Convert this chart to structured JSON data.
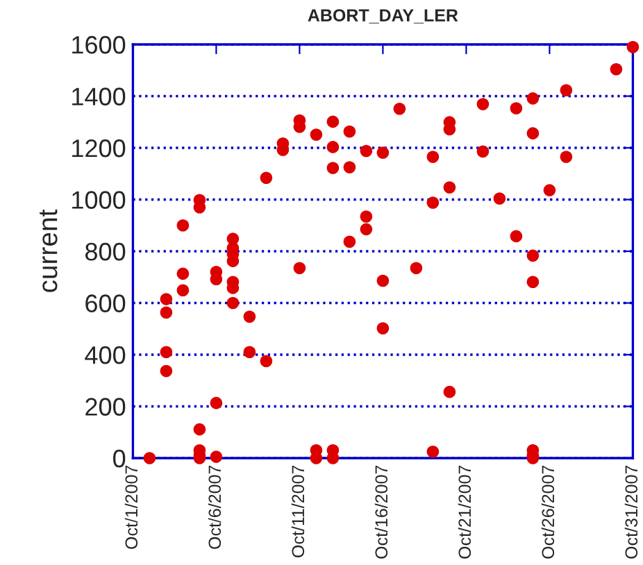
{
  "chart_data": {
    "type": "scatter",
    "title": "ABORT_DAY_LER",
    "ylabel": "current",
    "x": [
      "2007-10-02",
      "2007-10-03",
      "2007-10-03",
      "2007-10-03",
      "2007-10-03",
      "2007-10-04",
      "2007-10-04",
      "2007-10-04",
      "2007-10-05",
      "2007-10-05",
      "2007-10-05",
      "2007-10-05",
      "2007-10-05",
      "2007-10-05",
      "2007-10-06",
      "2007-10-06",
      "2007-10-06",
      "2007-10-06",
      "2007-10-07",
      "2007-10-07",
      "2007-10-07",
      "2007-10-07",
      "2007-10-07",
      "2007-10-07",
      "2007-10-07",
      "2007-10-08",
      "2007-10-08",
      "2007-10-09",
      "2007-10-09",
      "2007-10-10",
      "2007-10-10",
      "2007-10-11",
      "2007-10-11",
      "2007-10-11",
      "2007-10-12",
      "2007-10-12",
      "2007-10-12",
      "2007-10-13",
      "2007-10-13",
      "2007-10-13",
      "2007-10-13",
      "2007-10-13",
      "2007-10-14",
      "2007-10-14",
      "2007-10-14",
      "2007-10-15",
      "2007-10-15",
      "2007-10-15",
      "2007-10-16",
      "2007-10-16",
      "2007-10-16",
      "2007-10-17",
      "2007-10-18",
      "2007-10-19",
      "2007-10-19",
      "2007-10-19",
      "2007-10-20",
      "2007-10-20",
      "2007-10-20",
      "2007-10-20",
      "2007-10-22",
      "2007-10-22",
      "2007-10-23",
      "2007-10-24",
      "2007-10-24",
      "2007-10-25",
      "2007-10-25",
      "2007-10-25",
      "2007-10-25",
      "2007-10-25",
      "2007-10-25",
      "2007-10-25",
      "2007-10-26",
      "2007-10-27",
      "2007-10-27",
      "2007-10-30",
      "2007-10-31"
    ],
    "series": [
      {
        "color": "#dd0000",
        "values": [
          0,
          615,
          563,
          410,
          337,
          900,
          713,
          649,
          998,
          970,
          111,
          30,
          10,
          0,
          720,
          692,
          213,
          5,
          848,
          812,
          789,
          762,
          681,
          658,
          600,
          547,
          410,
          1084,
          375,
          1217,
          1192,
          1306,
          1281,
          735,
          1251,
          30,
          0,
          1301,
          1203,
          1122,
          30,
          0,
          1263,
          1125,
          837,
          1188,
          934,
          885,
          1181,
          686,
          502,
          1351,
          735,
          1165,
          988,
          25,
          1299,
          1272,
          1047,
          256,
          1369,
          1186,
          1004,
          1353,
          858,
          1391,
          1256,
          783,
          681,
          30,
          10,
          0,
          1036,
          1423,
          1165,
          1504,
          1590
        ]
      }
    ],
    "xlim": [
      "2007-10-01",
      "2007-10-31"
    ],
    "xticks": [
      {
        "value": "2007-10-01",
        "label": "Oct/1/2007"
      },
      {
        "value": "2007-10-06",
        "label": "Oct/6/2007"
      },
      {
        "value": "2007-10-11",
        "label": "Oct/11/2007"
      },
      {
        "value": "2007-10-16",
        "label": "Oct/16/2007"
      },
      {
        "value": "2007-10-21",
        "label": "Oct/21/2007"
      },
      {
        "value": "2007-10-26",
        "label": "Oct/26/2007"
      },
      {
        "value": "2007-10-31",
        "label": "Oct/31/2007"
      }
    ],
    "ylim": [
      0,
      1600
    ],
    "yticks": [
      0,
      200,
      400,
      600,
      800,
      1000,
      1200,
      1400,
      1600
    ],
    "grid": "y",
    "marker": "circle",
    "legend": false
  }
}
